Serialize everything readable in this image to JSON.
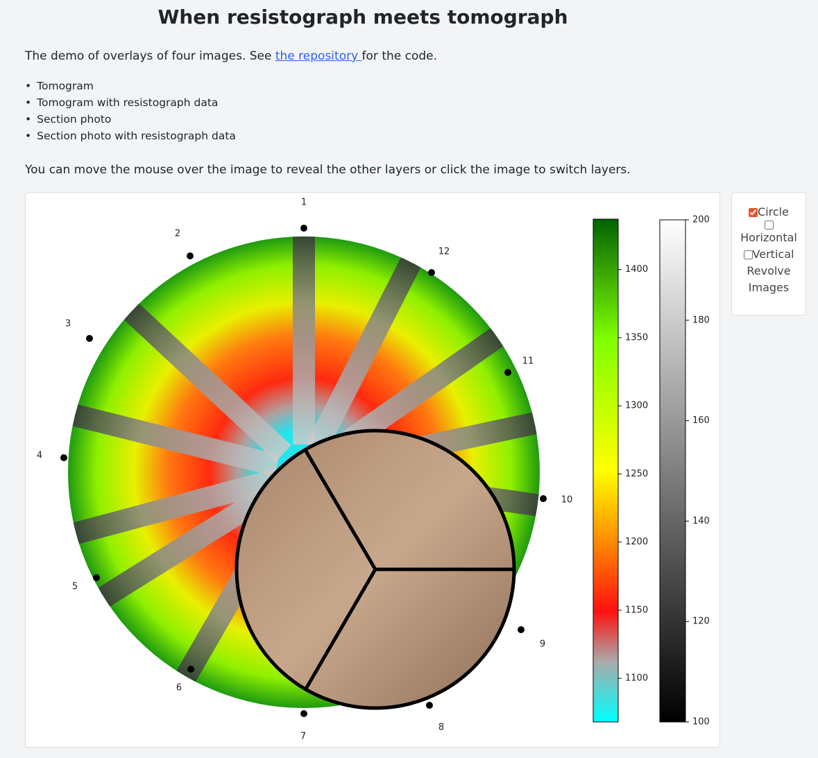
{
  "header": {
    "title": "When resistograph meets tomograph"
  },
  "intro": {
    "before": "The demo of overlays of four images. See ",
    "link": "the repository ",
    "after": "for the code."
  },
  "layers": [
    "Tomogram",
    "Tomogram with resistograph data",
    "Section photo",
    "Section photo with resistograph data"
  ],
  "instruction": "You can move the mouse over the image to reveal the other layers or click the image to switch layers.",
  "sensors": [
    "1",
    "2",
    "3",
    "4",
    "5",
    "6",
    "7",
    "8",
    "9",
    "10",
    "11",
    "12"
  ],
  "colorbars": [
    {
      "lim": [
        1068,
        1437
      ],
      "ticks": [
        1100,
        1150,
        1200,
        1250,
        1300,
        1350,
        1400
      ]
    },
    {
      "lim": [
        100,
        200
      ],
      "ticks": [
        100,
        120,
        140,
        160,
        180,
        200
      ]
    }
  ],
  "controls": {
    "options": [
      {
        "label": "Circle",
        "checked": true
      },
      {
        "label": "Horizontal",
        "checked": false
      },
      {
        "label": "Vertical",
        "checked": false
      }
    ],
    "button": "Revolve Images"
  }
}
